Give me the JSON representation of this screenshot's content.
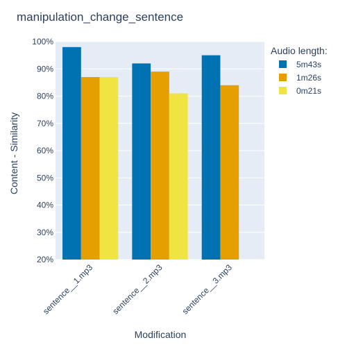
{
  "chart_data": {
    "type": "bar",
    "title": "manipulation_change_sentence",
    "xlabel": "Modification",
    "ylabel": "Content - Similarity",
    "categories": [
      "sentence__1.mp3",
      "sentence__2.mp3",
      "sentence__3.mp3"
    ],
    "ylim": [
      0.2,
      1.0
    ],
    "yticks": [
      {
        "value": 0.2,
        "label": "20%"
      },
      {
        "value": 0.3,
        "label": "30%"
      },
      {
        "value": 0.4,
        "label": "40%"
      },
      {
        "value": 0.5,
        "label": "50%"
      },
      {
        "value": 0.6,
        "label": "60%"
      },
      {
        "value": 0.7,
        "label": "70%"
      },
      {
        "value": 0.8,
        "label": "80%"
      },
      {
        "value": 0.9,
        "label": "90%"
      },
      {
        "value": 1.0,
        "label": "100%"
      }
    ],
    "legend_title": "Audio length:",
    "legend_position": "top-right",
    "grid": true,
    "series": [
      {
        "name": "5m43s",
        "color": "#0072b2",
        "values": [
          0.98,
          0.92,
          0.95
        ]
      },
      {
        "name": "1m26s",
        "color": "#e69f00",
        "values": [
          0.87,
          0.89,
          0.84
        ]
      },
      {
        "name": "0m21s",
        "color": "#f0e442",
        "values": [
          0.87,
          0.81,
          null
        ]
      }
    ]
  }
}
